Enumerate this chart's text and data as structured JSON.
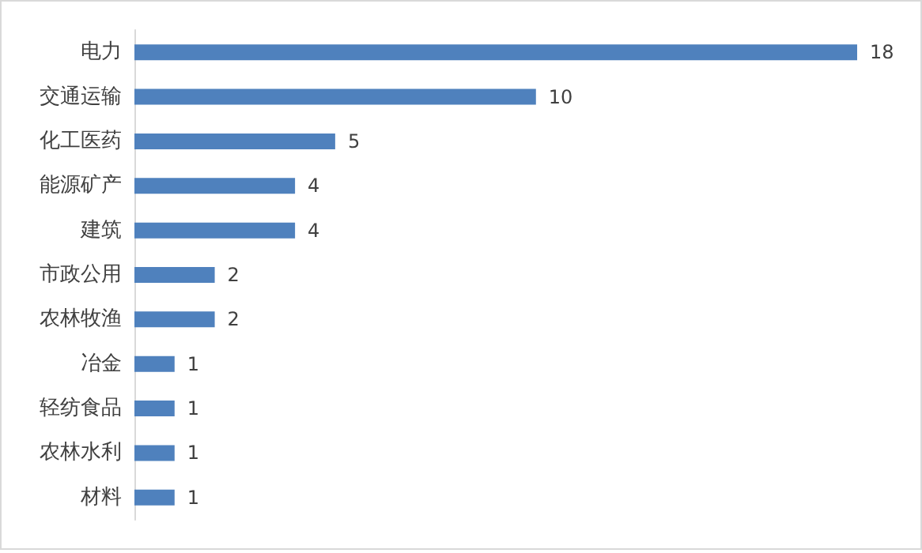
{
  "chart_data": {
    "type": "bar",
    "orientation": "horizontal",
    "categories": [
      "电力",
      "交通运输",
      "化工医药",
      "能源矿产",
      "建筑",
      "市政公用",
      "农林牧渔",
      "冶金",
      "轻纺食品",
      "农林水利",
      "材料"
    ],
    "values": [
      18,
      10,
      5,
      4,
      4,
      2,
      2,
      1,
      1,
      1,
      1
    ],
    "color": "#4f81bd",
    "data_labels": true
  }
}
